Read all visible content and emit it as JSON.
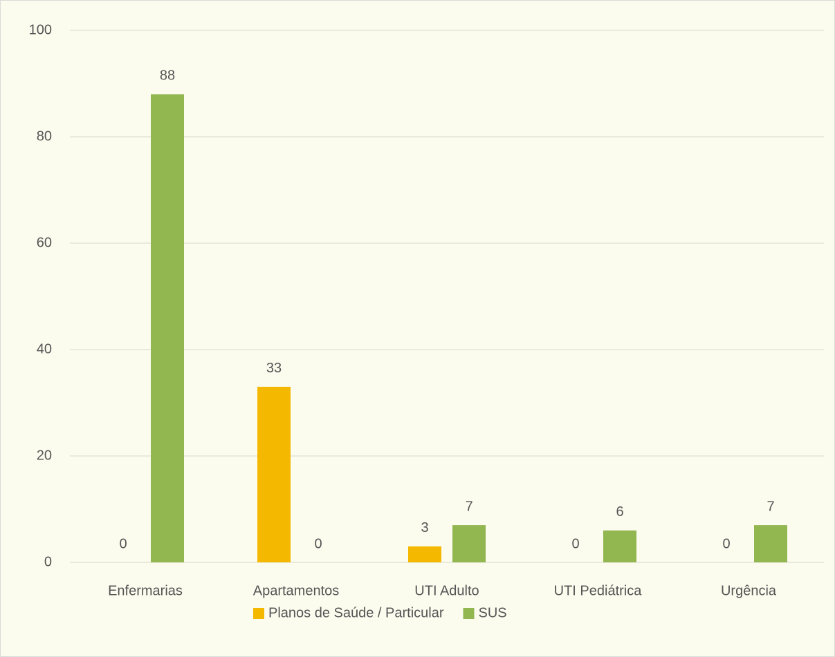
{
  "chart_data": {
    "type": "bar",
    "categories": [
      "Enfermarias",
      "Apartamentos",
      "UTI Adulto",
      "UTI Pediátrica",
      "Urgência"
    ],
    "series": [
      {
        "name": "Planos de Saúde / Particular",
        "color": "#f5b800",
        "values": [
          0,
          33,
          3,
          0,
          0
        ]
      },
      {
        "name": "SUS",
        "color": "#92b650",
        "values": [
          88,
          0,
          7,
          6,
          7
        ]
      }
    ],
    "ylim": [
      0,
      100
    ],
    "yticks": [
      0,
      20,
      40,
      60,
      80,
      100
    ],
    "grid": true,
    "legend": "bottom"
  }
}
